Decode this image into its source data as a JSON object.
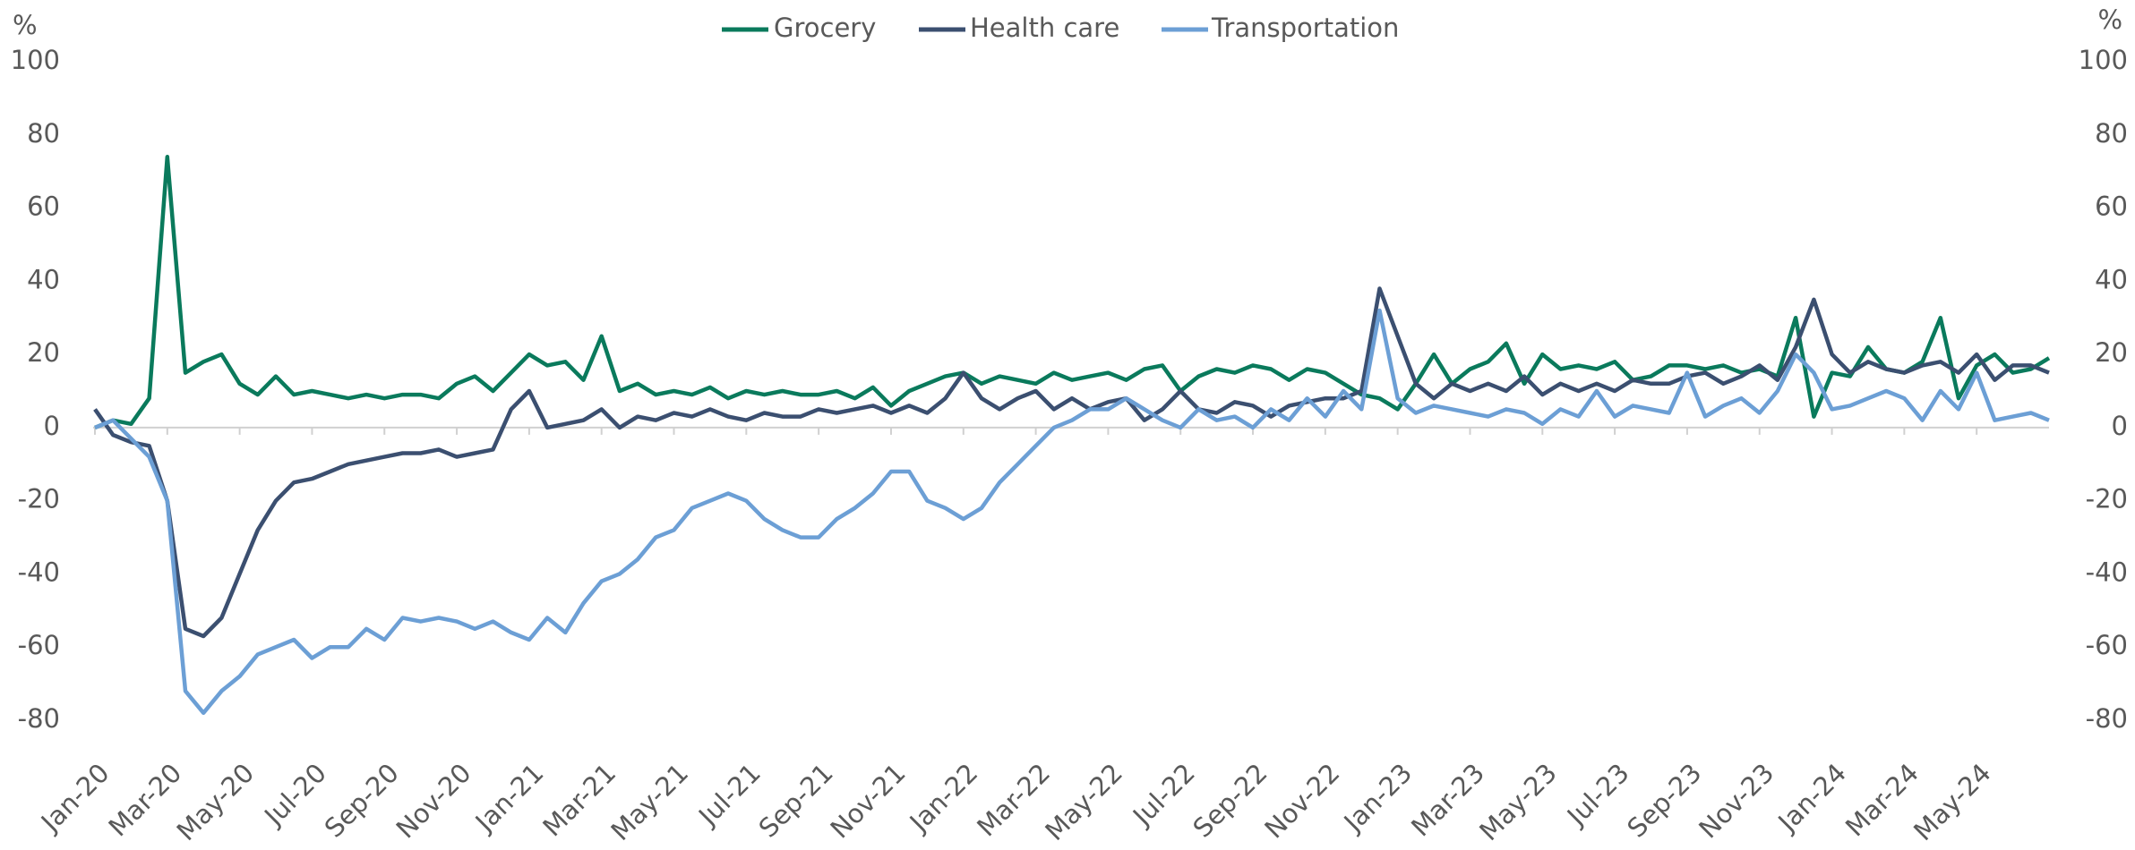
{
  "chart_data": {
    "type": "line",
    "yaxis_label": "%",
    "y2axis_label": "%",
    "categories": [
      "Jan-20",
      null,
      null,
      null,
      "Mar-20",
      null,
      null,
      null,
      "May-20",
      null,
      null,
      null,
      "Jul-20",
      null,
      null,
      null,
      "Sep-20",
      null,
      null,
      null,
      "Nov-20",
      null,
      null,
      null,
      "Jan-21",
      null,
      null,
      null,
      "Mar-21",
      null,
      null,
      null,
      "May-21",
      null,
      null,
      null,
      "Jul-21",
      null,
      null,
      null,
      "Sep-21",
      null,
      null,
      null,
      "Nov-21",
      null,
      null,
      null,
      "Jan-22",
      null,
      null,
      null,
      "Mar-22",
      null,
      null,
      null,
      "May-22",
      null,
      null,
      null,
      "Jul-22",
      null,
      null,
      null,
      "Sep-22",
      null,
      null,
      null,
      "Nov-22",
      null,
      null,
      null,
      "Jan-23",
      null,
      null,
      null,
      "Mar-23",
      null,
      null,
      null,
      "May-23",
      null,
      null,
      null,
      "Jul-23",
      null,
      null,
      null,
      "Sep-23",
      null,
      null,
      null,
      "Nov-23",
      null,
      null,
      null,
      "Jan-24",
      null,
      null,
      null,
      "Mar-24",
      null,
      null,
      null,
      "May-24",
      null,
      null,
      null,
      null
    ],
    "series": [
      {
        "name": "Grocery",
        "color": "#0a7a5c",
        "values": [
          0,
          2,
          1,
          8,
          74,
          15,
          18,
          20,
          12,
          9,
          14,
          9,
          10,
          9,
          8,
          9,
          8,
          9,
          9,
          8,
          12,
          14,
          10,
          15,
          20,
          17,
          18,
          13,
          25,
          10,
          12,
          9,
          10,
          9,
          11,
          8,
          10,
          9,
          10,
          9,
          9,
          10,
          8,
          11,
          6,
          10,
          12,
          14,
          15,
          12,
          14,
          13,
          12,
          15,
          13,
          14,
          15,
          13,
          16,
          17,
          10,
          14,
          16,
          15,
          17,
          16,
          13,
          16,
          15,
          12,
          9,
          8,
          5,
          12,
          20,
          12,
          16,
          18,
          23,
          12,
          20,
          16,
          17,
          16,
          18,
          13,
          14,
          17,
          17,
          16,
          17,
          15,
          16,
          14,
          30,
          3,
          15,
          14,
          22,
          16,
          15,
          18,
          30,
          8,
          17,
          20,
          15,
          16,
          19
        ]
      },
      {
        "name": "Health care",
        "color": "#3b4f70",
        "values": [
          5,
          -2,
          -4,
          -5,
          -20,
          -55,
          -57,
          -52,
          -40,
          -28,
          -20,
          -15,
          -14,
          -12,
          -10,
          -9,
          -8,
          -7,
          -7,
          -6,
          -8,
          -7,
          -6,
          5,
          10,
          0,
          1,
          2,
          5,
          0,
          3,
          2,
          4,
          3,
          5,
          3,
          2,
          4,
          3,
          3,
          5,
          4,
          5,
          6,
          4,
          6,
          4,
          8,
          15,
          8,
          5,
          8,
          10,
          5,
          8,
          5,
          7,
          8,
          2,
          5,
          10,
          5,
          4,
          7,
          6,
          3,
          6,
          7,
          8,
          8,
          10,
          38,
          25,
          12,
          8,
          12,
          10,
          12,
          10,
          14,
          9,
          12,
          10,
          12,
          10,
          13,
          12,
          12,
          14,
          15,
          12,
          14,
          17,
          13,
          22,
          35,
          20,
          15,
          18,
          16,
          15,
          17,
          18,
          15,
          20,
          13,
          17,
          17,
          15
        ]
      },
      {
        "name": "Transportation",
        "color": "#6c9fd5",
        "values": [
          0,
          2,
          -3,
          -8,
          -20,
          -72,
          -78,
          -72,
          -68,
          -62,
          -60,
          -58,
          -63,
          -60,
          -60,
          -55,
          -58,
          -52,
          -53,
          -52,
          -53,
          -55,
          -53,
          -56,
          -58,
          -52,
          -56,
          -48,
          -42,
          -40,
          -36,
          -30,
          -28,
          -22,
          -20,
          -18,
          -20,
          -25,
          -28,
          -30,
          -30,
          -25,
          -22,
          -18,
          -12,
          -12,
          -20,
          -22,
          -25,
          -22,
          -15,
          -10,
          -5,
          0,
          2,
          5,
          5,
          8,
          5,
          2,
          0,
          5,
          2,
          3,
          0,
          5,
          2,
          8,
          3,
          10,
          5,
          32,
          8,
          4,
          6,
          5,
          4,
          3,
          5,
          4,
          1,
          5,
          3,
          10,
          3,
          6,
          5,
          4,
          15,
          3,
          6,
          8,
          4,
          10,
          20,
          15,
          5,
          6,
          8,
          10,
          8,
          2,
          10,
          5,
          15,
          2,
          3,
          4,
          2
        ]
      }
    ],
    "ylim": [
      -80,
      100
    ],
    "yticks": [
      -80,
      -60,
      -40,
      -20,
      0,
      20,
      40,
      60,
      80,
      100
    ],
    "y2lim": [
      -80,
      100
    ],
    "y2ticks": [
      -80,
      -60,
      -40,
      -20,
      0,
      20,
      40,
      60,
      80,
      100
    ],
    "legend": "top",
    "grid": false
  }
}
